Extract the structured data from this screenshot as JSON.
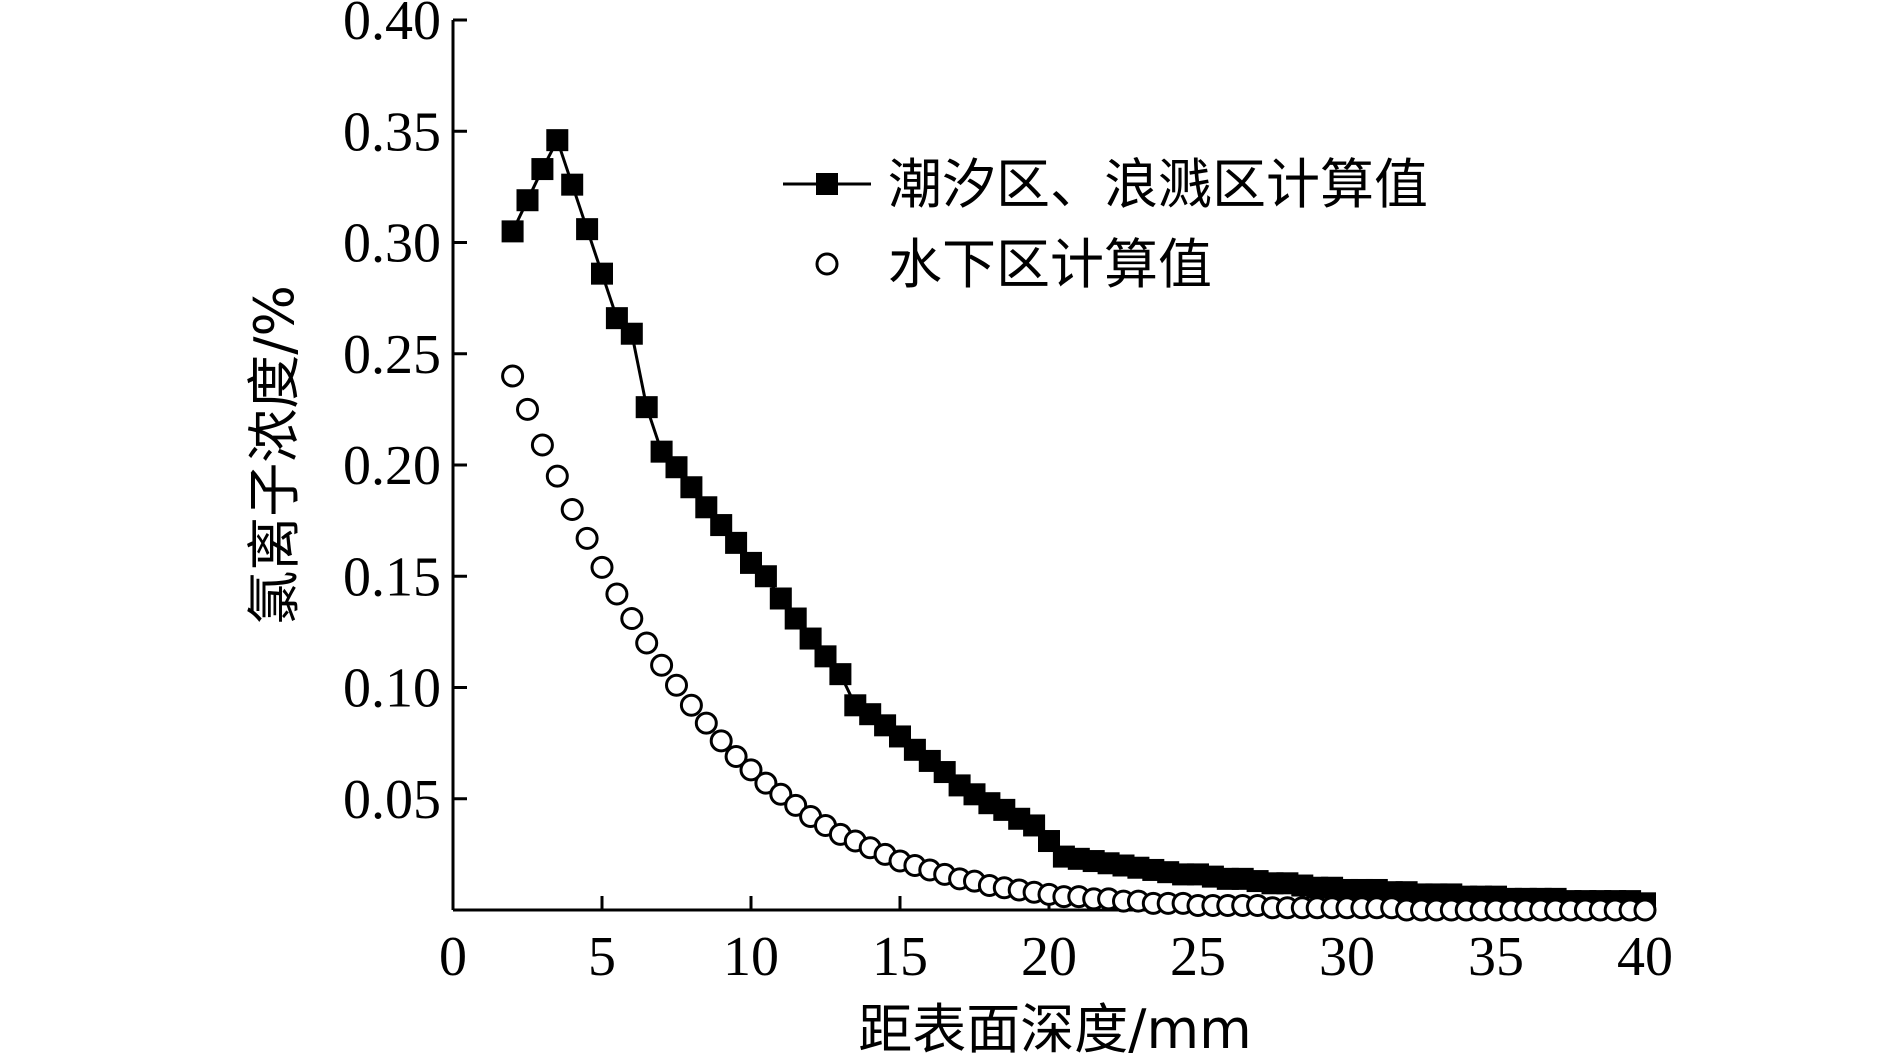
{
  "chart_data": {
    "type": "scatter",
    "xlabel": "距表面深度/mm",
    "ylabel": "氯离子浓度/%",
    "xlim": [
      0,
      40
    ],
    "ylim": [
      0,
      0.4
    ],
    "x_ticks": [
      "0",
      "5",
      "10",
      "15",
      "20",
      "25",
      "30",
      "35",
      "40"
    ],
    "y_ticks": [
      "0.05",
      "0.10",
      "0.15",
      "0.20",
      "0.25",
      "0.30",
      "0.35",
      "0.40"
    ],
    "grid": false,
    "legend_position": "top-right",
    "series": [
      {
        "name": "潮汐区、浪溅区计算值",
        "marker": "filled-square",
        "line": true,
        "color": "#000000",
        "x": [
          2,
          2.5,
          3,
          3.5,
          4,
          4.5,
          5,
          5.5,
          6,
          6.5,
          7,
          7.5,
          8,
          8.5,
          9,
          9.5,
          10,
          10.5,
          11,
          11.5,
          12,
          12.5,
          13,
          13.5,
          14,
          14.5,
          15,
          15.5,
          16,
          16.5,
          17,
          17.5,
          18,
          18.5,
          19,
          19.5,
          20,
          20.5,
          21,
          21.5,
          22,
          22.5,
          23,
          23.5,
          24,
          24.5,
          25,
          25.5,
          26,
          26.5,
          27,
          27.5,
          28,
          28.5,
          29,
          29.5,
          30,
          30.5,
          31,
          31.5,
          32,
          32.5,
          33,
          33.5,
          34,
          34.5,
          35,
          35.5,
          36,
          36.5,
          37,
          37.5,
          38,
          38.5,
          39,
          39.5,
          40
        ],
        "y": [
          0.305,
          0.319,
          0.333,
          0.346,
          0.326,
          0.306,
          0.286,
          0.266,
          0.259,
          0.226,
          0.206,
          0.199,
          0.19,
          0.181,
          0.173,
          0.165,
          0.156,
          0.15,
          0.14,
          0.131,
          0.122,
          0.114,
          0.106,
          0.092,
          0.088,
          0.083,
          0.078,
          0.072,
          0.067,
          0.062,
          0.056,
          0.052,
          0.048,
          0.045,
          0.041,
          0.038,
          0.031,
          0.024,
          0.023,
          0.022,
          0.021,
          0.02,
          0.019,
          0.018,
          0.017,
          0.016,
          0.016,
          0.015,
          0.014,
          0.014,
          0.013,
          0.012,
          0.012,
          0.011,
          0.01,
          0.01,
          0.009,
          0.009,
          0.009,
          0.008,
          0.008,
          0.007,
          0.007,
          0.007,
          0.006,
          0.006,
          0.006,
          0.005,
          0.005,
          0.005,
          0.005,
          0.004,
          0.004,
          0.004,
          0.004,
          0.004,
          0.003
        ]
      },
      {
        "name": "水下区计算值",
        "marker": "open-circle",
        "line": false,
        "color": "#000000",
        "x": [
          2,
          2.5,
          3,
          3.5,
          4,
          4.5,
          5,
          5.5,
          6,
          6.5,
          7,
          7.5,
          8,
          8.5,
          9,
          9.5,
          10,
          10.5,
          11,
          11.5,
          12,
          12.5,
          13,
          13.5,
          14,
          14.5,
          15,
          15.5,
          16,
          16.5,
          17,
          17.5,
          18,
          18.5,
          19,
          19.5,
          20,
          20.5,
          21,
          21.5,
          22,
          22.5,
          23,
          23.5,
          24,
          24.5,
          25,
          25.5,
          26,
          26.5,
          27,
          27.5,
          28,
          28.5,
          29,
          29.5,
          30,
          30.5,
          31,
          31.5,
          32,
          32.5,
          33,
          33.5,
          34,
          34.5,
          35,
          35.5,
          36,
          36.5,
          37,
          37.5,
          38,
          38.5,
          39,
          39.5,
          40
        ],
        "y": [
          0.24,
          0.225,
          0.209,
          0.195,
          0.18,
          0.167,
          0.154,
          0.142,
          0.131,
          0.12,
          0.11,
          0.101,
          0.092,
          0.084,
          0.076,
          0.069,
          0.063,
          0.057,
          0.052,
          0.047,
          0.042,
          0.038,
          0.034,
          0.031,
          0.028,
          0.025,
          0.022,
          0.02,
          0.018,
          0.016,
          0.014,
          0.013,
          0.011,
          0.01,
          0.009,
          0.008,
          0.007,
          0.006,
          0.006,
          0.005,
          0.005,
          0.004,
          0.004,
          0.003,
          0.003,
          0.003,
          0.002,
          0.002,
          0.002,
          0.002,
          0.002,
          0.001,
          0.001,
          0.001,
          0.001,
          0.001,
          0.001,
          0.001,
          0.001,
          0.001,
          0,
          0,
          0,
          0,
          0,
          0,
          0,
          0,
          0,
          0,
          0,
          0,
          0,
          0,
          0,
          0,
          0
        ]
      }
    ]
  }
}
